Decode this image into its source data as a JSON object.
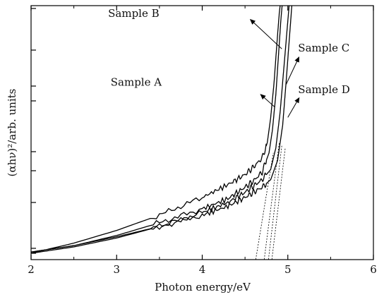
{
  "chart_data": {
    "type": "line",
    "title": "",
    "xlabel": "Photon energy/eV",
    "ylabel": "(αhν)²/arb. units",
    "xlim": [
      2,
      6
    ],
    "ylim": [
      0,
      10
    ],
    "x_ticks": [
      "2",
      "3",
      "4",
      "5",
      "6"
    ],
    "y_ticks_labeled": false,
    "grid": false,
    "legend": "none",
    "series": [
      {
        "name": "Sample A",
        "x": [
          2.0,
          2.5,
          3.0,
          3.5,
          4.0,
          4.3,
          4.5,
          4.6,
          4.7,
          4.78,
          4.82,
          4.86,
          4.89,
          4.92,
          4.95
        ],
        "y": [
          0.3,
          0.55,
          0.95,
          1.45,
          2.0,
          2.4,
          2.85,
          3.1,
          3.45,
          4.2,
          5.1,
          6.5,
          8.0,
          9.5,
          10.6
        ]
      },
      {
        "name": "Sample B",
        "x": [
          2.0,
          2.5,
          3.0,
          3.5,
          4.0,
          4.3,
          4.5,
          4.6,
          4.7,
          4.76,
          4.8,
          4.84,
          4.87,
          4.9,
          4.93
        ],
        "y": [
          0.25,
          0.65,
          1.15,
          1.75,
          2.45,
          2.95,
          3.35,
          3.65,
          4.0,
          4.6,
          5.6,
          7.0,
          8.4,
          9.7,
          10.6
        ]
      },
      {
        "name": "Sample C",
        "x": [
          2.0,
          2.5,
          3.0,
          3.5,
          4.0,
          4.3,
          4.5,
          4.6,
          4.7,
          4.8,
          4.86,
          4.91,
          4.95,
          4.99,
          5.03
        ],
        "y": [
          0.25,
          0.5,
          0.85,
          1.3,
          1.85,
          2.25,
          2.65,
          2.9,
          3.15,
          3.55,
          4.4,
          5.8,
          7.4,
          9.0,
          10.6
        ]
      },
      {
        "name": "Sample D",
        "x": [
          2.0,
          2.5,
          3.0,
          3.5,
          4.0,
          4.3,
          4.5,
          4.6,
          4.7,
          4.8,
          4.88,
          4.94,
          4.98,
          5.02,
          5.06
        ],
        "y": [
          0.3,
          0.55,
          0.9,
          1.3,
          1.75,
          2.1,
          2.45,
          2.65,
          2.85,
          3.15,
          3.9,
          5.3,
          7.0,
          8.8,
          10.6
        ]
      }
    ],
    "extrapolations": [
      {
        "x": [
          4.62,
          4.83
        ],
        "y": [
          -0.1,
          4.2
        ]
      },
      {
        "x": [
          4.72,
          4.9
        ],
        "y": [
          -0.1,
          4.6
        ]
      },
      {
        "x": [
          4.77,
          4.93
        ],
        "y": [
          -0.1,
          4.5
        ]
      },
      {
        "x": [
          4.81,
          4.97
        ],
        "y": [
          -0.1,
          4.4
        ]
      }
    ],
    "annotations": [
      {
        "text": "Sample B",
        "x_text": 2.9,
        "y_text": 9.55,
        "arrow_x": 4.58,
        "arrow_y": 9.4,
        "tip_x": 4.93,
        "tip_y": 8.3,
        "arrow": "start"
      },
      {
        "text": "Sample A",
        "x_text": 2.93,
        "y_text": 6.85,
        "arrow_x": 4.7,
        "arrow_y": 6.45,
        "tip_x": 4.85,
        "tip_y": 6.0,
        "arrow": "start"
      },
      {
        "text": "Sample C",
        "x_text": 5.12,
        "y_text": 8.2,
        "arrow_x": 5.12,
        "arrow_y": 7.9,
        "tip_x": 4.98,
        "tip_y": 6.9,
        "arrow": "start"
      },
      {
        "text": "Sample D",
        "x_text": 5.12,
        "y_text": 6.55,
        "arrow_x": 5.12,
        "arrow_y": 6.3,
        "tip_x": 5.0,
        "tip_y": 5.6,
        "arrow": "start"
      }
    ]
  }
}
